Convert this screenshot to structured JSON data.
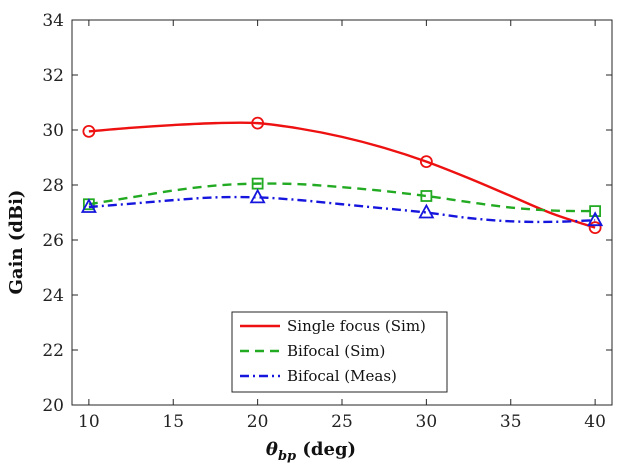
{
  "chart_data": {
    "type": "line",
    "title": "",
    "xlabel_main": "θ",
    "xlabel_sub": "bp",
    "xlabel_unit": " (deg)",
    "ylabel": "Gain (dBi)",
    "xlim": [
      9,
      41
    ],
    "ylim": [
      20,
      34
    ],
    "xticks": [
      10,
      15,
      20,
      25,
      30,
      35,
      40
    ],
    "yticks": [
      20,
      22,
      24,
      26,
      28,
      30,
      32,
      34
    ],
    "grid": false,
    "legend_position": "bottom-center",
    "series": [
      {
        "name": "Single focus (Sim)",
        "color": "#ee1111",
        "dash": "solid",
        "marker": "circle",
        "marker_x": [
          10,
          20,
          30,
          40
        ],
        "marker_y": [
          29.95,
          30.25,
          28.85,
          26.45
        ],
        "curve_x": [
          10,
          12.5,
          15,
          17.5,
          20,
          22.5,
          25,
          27.5,
          30,
          32.5,
          35,
          37.5,
          40
        ],
        "curve_y": [
          29.95,
          30.08,
          30.18,
          30.25,
          30.25,
          30.05,
          29.75,
          29.35,
          28.85,
          28.25,
          27.6,
          26.95,
          26.45
        ]
      },
      {
        "name": "Bifocal (Sim)",
        "color": "#22aa22",
        "dash": "dashed",
        "marker": "square",
        "marker_x": [
          10,
          20,
          30,
          40
        ],
        "marker_y": [
          27.3,
          28.05,
          27.6,
          27.05
        ],
        "curve_x": [
          10,
          12.5,
          15,
          17.5,
          20,
          22.5,
          25,
          27.5,
          30,
          32.5,
          35,
          37.5,
          40
        ],
        "curve_y": [
          27.3,
          27.55,
          27.8,
          27.98,
          28.05,
          28.03,
          27.92,
          27.78,
          27.6,
          27.38,
          27.18,
          27.07,
          27.05
        ]
      },
      {
        "name": "Bifocal (Meas)",
        "color": "#1515dd",
        "dash": "dashdot",
        "marker": "triangle",
        "marker_x": [
          10,
          20,
          30,
          40
        ],
        "marker_y": [
          27.2,
          27.55,
          27.0,
          26.72
        ],
        "curve_x": [
          10,
          12.5,
          15,
          17.5,
          20,
          22.5,
          25,
          27.5,
          30,
          32.5,
          35,
          37.5,
          40
        ],
        "curve_y": [
          27.2,
          27.32,
          27.45,
          27.55,
          27.55,
          27.45,
          27.3,
          27.15,
          27.0,
          26.8,
          26.68,
          26.66,
          26.72
        ]
      }
    ]
  }
}
